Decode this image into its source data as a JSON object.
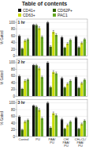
{
  "chart_data": [
    {
      "type": "bar",
      "title": "Table of contents",
      "annotations": [
        "1 hr"
      ],
      "ylabel": "% Gated",
      "categories": [
        null,
        null,
        null,
        null,
        null
      ],
      "series": [
        {
          "name": "CD41+",
          "color": "#111111",
          "values": [
            60,
            93,
            100,
            56,
            58
          ],
          "errors": [
            3,
            2,
            3,
            3,
            3
          ]
        },
        {
          "name": "CD62P+",
          "color": "#336600",
          "values": [
            22,
            92,
            28,
            25,
            26
          ],
          "errors": [
            2,
            3,
            3,
            2,
            2
          ]
        },
        {
          "name": "CD63+",
          "color": "#ccdd00",
          "values": [
            46,
            83,
            72,
            37,
            39
          ],
          "errors": [
            3,
            4,
            4,
            3,
            3
          ]
        },
        {
          "name": "PAC1",
          "color": "#66aa22",
          "values": [
            50,
            57,
            63,
            48,
            50
          ],
          "errors": [
            3,
            3,
            4,
            3,
            3
          ]
        }
      ],
      "ylim": [
        0,
        110
      ],
      "yticks": [
        0,
        20,
        40,
        60,
        80,
        100
      ],
      "grid": true,
      "legend": "upper right"
    },
    {
      "type": "bar",
      "annotations": [
        "2 hr"
      ],
      "ylabel": "% Gated",
      "categories": [
        null,
        null,
        null,
        null,
        null
      ],
      "series": [
        {
          "name": "CD41+",
          "color": "#111111",
          "values": [
            60,
            93,
            100,
            54,
            57
          ],
          "errors": [
            3,
            2,
            3,
            3,
            3
          ]
        },
        {
          "name": "CD62P+",
          "color": "#336600",
          "values": [
            22,
            92,
            27,
            26,
            25
          ],
          "errors": [
            2,
            3,
            3,
            2,
            2
          ]
        },
        {
          "name": "CD63+",
          "color": "#ccdd00",
          "values": [
            46,
            83,
            72,
            37,
            39
          ],
          "errors": [
            3,
            4,
            4,
            3,
            3
          ]
        },
        {
          "name": "PAC1",
          "color": "#66aa22",
          "values": [
            50,
            57,
            68,
            46,
            49
          ],
          "errors": [
            3,
            3,
            4,
            3,
            3
          ]
        }
      ],
      "ylim": [
        0,
        110
      ],
      "yticks": [
        0,
        20,
        40,
        60,
        80,
        100
      ],
      "grid": true
    },
    {
      "type": "bar",
      "annotations": [
        "3 hr"
      ],
      "ylabel": "% Gated",
      "categories": [
        "Control",
        "PU",
        "PAA/\nPU",
        "CH/\nPAA/\nPU",
        "CH+CL/\nPAA/\nPU"
      ],
      "series": [
        {
          "name": "CD41+",
          "color": "#111111",
          "values": [
            59,
            92,
            100,
            51,
            56
          ],
          "errors": [
            3,
            2,
            3,
            3,
            3
          ]
        },
        {
          "name": "CD62P+",
          "color": "#336600",
          "values": [
            20,
            88,
            26,
            23,
            23
          ],
          "errors": [
            2,
            3,
            3,
            2,
            2
          ]
        },
        {
          "name": "CD63+",
          "color": "#ccdd00",
          "values": [
            44,
            79,
            69,
            34,
            37
          ],
          "errors": [
            3,
            4,
            4,
            3,
            3
          ]
        },
        {
          "name": "PAC1",
          "color": "#66aa22",
          "values": [
            49,
            54,
            63,
            44,
            47
          ],
          "errors": [
            3,
            3,
            4,
            3,
            3
          ]
        }
      ],
      "ylim": [
        0,
        110
      ],
      "yticks": [
        0,
        20,
        40,
        60,
        80,
        100
      ],
      "grid": true
    }
  ]
}
